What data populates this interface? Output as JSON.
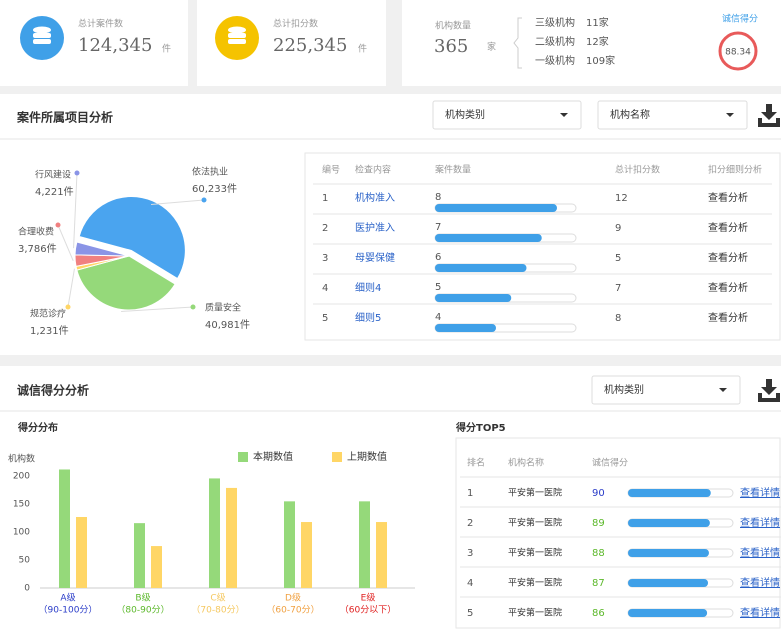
{
  "stats": [
    {
      "label": "总计案件数",
      "value": "124,345",
      "unit": "件"
    },
    {
      "label": "总计扣分数",
      "value": "225,345",
      "unit": "件"
    }
  ],
  "institutions": {
    "label": "机构数量",
    "value": "365",
    "unit": "家",
    "levels": [
      {
        "name": "三级机构",
        "count": "11家"
      },
      {
        "name": "二级机构",
        "count": "12家"
      },
      {
        "name": "一级机构",
        "count": "109家"
      }
    ]
  },
  "credit": {
    "label": "诚信得分",
    "score": 88.34
  },
  "section1": {
    "title": "案件所属项目分析",
    "filters": [
      "机构类别",
      "机构名称"
    ]
  },
  "case_table": {
    "headers": [
      "编号",
      "检查内容",
      "案件数量",
      "总计扣分数",
      "扣分细则分析"
    ],
    "rows": [
      {
        "no": 1,
        "item": "机构准入",
        "count": 8,
        "deduction": 12,
        "action": "查看分析"
      },
      {
        "no": 2,
        "item": "医护准入",
        "count": 7,
        "deduction": 9,
        "action": "查看分析"
      },
      {
        "no": 3,
        "item": "母婴保健",
        "count": 6,
        "deduction": 5,
        "action": "查看分析"
      },
      {
        "no": 4,
        "item": "细则4",
        "count": 5,
        "deduction": 7,
        "action": "查看分析"
      },
      {
        "no": 5,
        "item": "细则5",
        "count": 4,
        "deduction": 8,
        "action": "查看分析"
      }
    ]
  },
  "section2": {
    "title": "诚信得分分析",
    "filters": [
      "机构类别"
    ]
  },
  "top5": {
    "title": "得分TOP5",
    "headers": [
      "排名",
      "机构名称",
      "诚信得分"
    ],
    "rows": [
      {
        "rank": 1,
        "name": "平安第一医院",
        "score": 90,
        "color": "#2a3cc8",
        "action": "查看详情"
      },
      {
        "rank": 2,
        "name": "平安第一医院",
        "score": 89,
        "color": "#5cb82b",
        "action": "查看详情"
      },
      {
        "rank": 3,
        "name": "平安第一医院",
        "score": 88,
        "color": "#5cb82b",
        "action": "查看详情"
      },
      {
        "rank": 4,
        "name": "平安第一医院",
        "score": 87,
        "color": "#5cb82b",
        "action": "查看详情"
      },
      {
        "rank": 5,
        "name": "平安第一医院",
        "score": 86,
        "color": "#5cb82b",
        "action": "查看详情"
      }
    ]
  },
  "chart_data": [
    {
      "type": "pie",
      "categories": [
        "依法执业",
        "质量安全",
        "规范诊疗",
        "合理收费",
        "行风建设"
      ],
      "values": [
        60233,
        40981,
        1231,
        3786,
        4221
      ],
      "value_labels": [
        "60,233件",
        "40,981件",
        "1,231件",
        "3,786件",
        "4,221件"
      ],
      "colors": [
        "#4aa4ef",
        "#95d97a",
        "#ffd666",
        "#f08080",
        "#8a94e6"
      ]
    },
    {
      "type": "bar",
      "title": "得分分布",
      "y_label": "机构数",
      "categories": [
        "A级",
        "B级",
        "C级",
        "D级",
        "E级"
      ],
      "category_ranges": [
        "（90-100分）",
        "（80-90分）",
        "（70-80分）",
        "（60-70分）",
        "（60分以下）"
      ],
      "category_colors": [
        "#2a3cc8",
        "#5cb82b",
        "#f5c860",
        "#f0a040",
        "#e02020"
      ],
      "series": [
        {
          "name": "本期数值",
          "color": "#95d97a",
          "values": [
            212,
            116,
            196,
            155,
            155
          ]
        },
        {
          "name": "上期数值",
          "color": "#ffd666",
          "values": [
            127,
            75,
            179,
            118,
            118
          ]
        }
      ],
      "ylim": [
        0,
        220
      ],
      "yticks": [
        0,
        50,
        100,
        150,
        200
      ]
    }
  ]
}
